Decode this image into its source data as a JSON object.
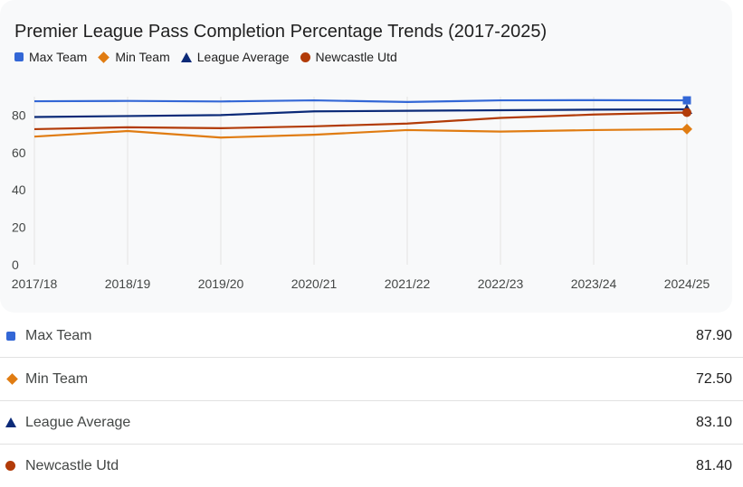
{
  "chart_data": {
    "type": "line",
    "title": "Premier League Pass Completion Percentage Trends (2017-2025)",
    "categories": [
      "2017/18",
      "2018/19",
      "2019/20",
      "2020/21",
      "2021/22",
      "2022/23",
      "2023/24",
      "2024/25"
    ],
    "ylim": [
      0,
      92
    ],
    "yticks": [
      0,
      20,
      40,
      60,
      80
    ],
    "xlabel": "",
    "ylabel": "",
    "legend_position": "top-left",
    "series": [
      {
        "name": "Max Team",
        "color": "#3367d6",
        "marker": "square",
        "values": [
          87.4,
          87.6,
          87.3,
          87.9,
          87.0,
          87.9,
          88.0,
          87.9
        ]
      },
      {
        "name": "Min Team",
        "color": "#e07c12",
        "marker": "diamond",
        "values": [
          68.5,
          71.5,
          68.0,
          69.5,
          72.0,
          71.2,
          72.0,
          72.5
        ]
      },
      {
        "name": "League Average",
        "color": "#0b2a78",
        "marker": "triangle",
        "values": [
          79.0,
          79.5,
          80.0,
          82.0,
          82.3,
          82.6,
          82.9,
          83.1
        ]
      },
      {
        "name": "Newcastle Utd",
        "color": "#b23b08",
        "marker": "circle",
        "values": [
          72.5,
          73.5,
          73.0,
          74.0,
          75.5,
          78.5,
          80.3,
          81.4
        ]
      }
    ]
  },
  "summary": [
    {
      "name": "Max Team",
      "value": "87.90",
      "marker": "square"
    },
    {
      "name": "Min Team",
      "value": "72.50",
      "marker": "diamond"
    },
    {
      "name": "League Average",
      "value": "83.10",
      "marker": "triangle"
    },
    {
      "name": "Newcastle Utd",
      "value": "81.40",
      "marker": "circle"
    }
  ]
}
